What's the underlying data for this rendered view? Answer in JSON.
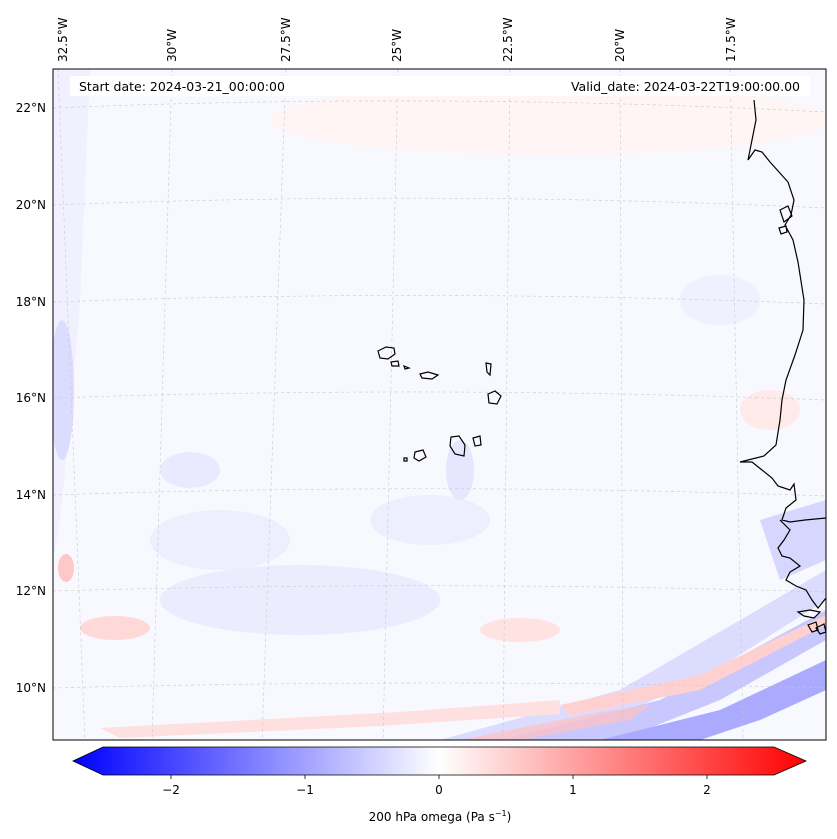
{
  "map": {
    "start_date": "Start date: 2024-03-21_00:00:00",
    "valid_date": "Valid_date: 2024-03-22T19:00:00.00",
    "lon_labels": [
      "32.5°W",
      "30°W",
      "27.5°W",
      "25°W",
      "22.5°W",
      "20°W",
      "17.5°W"
    ],
    "lat_labels": [
      "22°N",
      "20°N",
      "18°N",
      "16°N",
      "14°N",
      "12°N",
      "10°N"
    ],
    "field": "200 hPa omega",
    "lon_range": [
      -33.0,
      -15.0
    ],
    "lat_range": [
      8.8,
      22.8
    ]
  },
  "colorbar": {
    "label": "200 hPa omega (Pa s",
    "label_sup": "−1",
    "label_close": ")",
    "ticks": [
      "−2",
      "−1",
      "0",
      "1",
      "2"
    ],
    "tick_values": [
      -2,
      -1,
      0,
      1,
      2
    ],
    "range": [
      -2.5,
      2.5
    ],
    "colors": {
      "negative": "#0000ff",
      "zero": "#ffffff",
      "positive": "#ff0000"
    }
  }
}
